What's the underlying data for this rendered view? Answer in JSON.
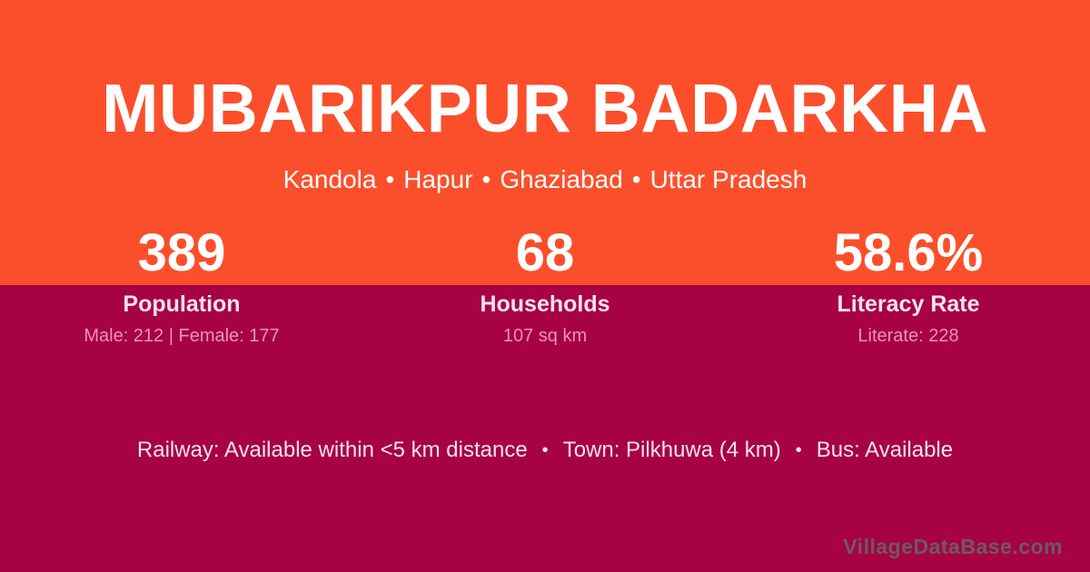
{
  "card": {
    "village_name": "MUBARIKPUR BADARKHA",
    "location": {
      "separator": "•",
      "parts": [
        "Kandola",
        "Hapur",
        "Ghaziabad",
        "Uttar Pradesh"
      ]
    },
    "stats": [
      {
        "value": "389",
        "label": "Population",
        "detail": "Male: 212 | Female: 177"
      },
      {
        "value": "68",
        "label": "Households",
        "detail": "107 sq km"
      },
      {
        "value": "58.6%",
        "label": "Literacy Rate",
        "detail": "Literate: 228"
      }
    ],
    "amenities": {
      "separator": "•",
      "items": [
        "Railway: Available within <5 km distance",
        "Town: Pilkhuwa (4 km)",
        "Bus: Available"
      ]
    },
    "watermark": "VillageDataBase.com",
    "colors": {
      "orange": "#FB4F2B",
      "maroon": "#A60244",
      "text_white": "#FFFFFF",
      "label_light_pink": "#F6E2EB",
      "detail_pink": "#EE92B2",
      "watermark_gray": "#6E5964"
    }
  }
}
